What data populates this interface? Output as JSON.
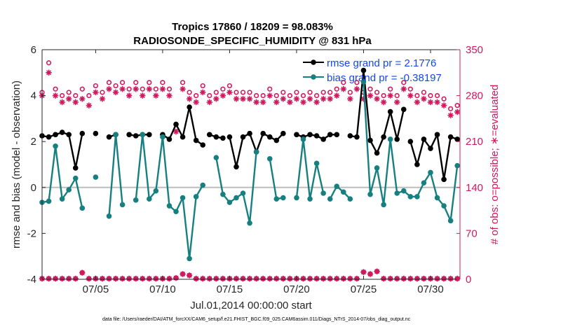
{
  "chart_data": {
    "type": "line",
    "title_line1": "Tropics 17860 / 18209 = 98.083%",
    "title_line2": "RADIOSONDE_SPECIFIC_HUMIDITY @ 831 hPa",
    "xlabel": "Jul.01,2014 00:00:00 start",
    "ylabel_left": "rmse and bias (model - observation)",
    "ylabel_right": "# of obs: o=possible; ∗=evaluated",
    "footer": "data file: /Users/raeder/DAI/ATM_forcXX/CAM6_setup/f.e21.FHIST_BGC.f09_025.CAM6assim.011/Diags_NTrS_2014-07/obs_diag_output.nc",
    "xlim": [
      1,
      32.2
    ],
    "ylim_left": [
      -4,
      6
    ],
    "ylim_right": [
      0,
      350
    ],
    "x_ticks": [
      5,
      10,
      15,
      20,
      25,
      30
    ],
    "x_tick_labels": [
      "07/05",
      "07/10",
      "07/15",
      "07/20",
      "07/25",
      "07/30"
    ],
    "y_left_ticks": [
      -4,
      -2,
      0,
      2,
      4,
      6
    ],
    "y_left_tick_labels": [
      "-4",
      "-2",
      "0",
      "2",
      "4",
      "6"
    ],
    "y_right_ticks": [
      0,
      70,
      140,
      210,
      280,
      350
    ],
    "y_right_tick_labels": [
      "0",
      "70",
      "140",
      "210",
      "280",
      "350"
    ],
    "legend": {
      "position": "top-right",
      "entries": [
        "rmse grand pr = 2.1776",
        "bias grand pr = -0.38197"
      ]
    },
    "colors": {
      "rmse": "#000000",
      "bias": "#168080",
      "obs": "#d1185e",
      "zero_line": "#bdbdbd",
      "title": "#000000"
    },
    "series": [
      {
        "name": "rmse",
        "segments": [
          {
            "x": [
              1.0,
              1.5,
              2.0,
              2.5,
              3.0,
              3.5,
              4.0
            ],
            "y": [
              2.25,
              2.2,
              2.3,
              2.4,
              2.3,
              0.85,
              2.35
            ]
          },
          {
            "x": [
              5.0
            ],
            "y": [
              2.35
            ]
          },
          {
            "x": [
              6.0,
              6.5
            ],
            "y": [
              2.2,
              2.3
            ]
          },
          {
            "x": [
              7.5,
              8.0,
              8.5,
              9.0
            ],
            "y": [
              2.3,
              2.25,
              2.3,
              2.3
            ]
          },
          {
            "x": [
              10.0,
              10.5,
              11.0,
              11.5,
              12.0,
              12.5,
              13.0
            ],
            "y": [
              2.3,
              2.1,
              2.75,
              2.2,
              3.5,
              2.05,
              1.85
            ]
          },
          {
            "x": [
              13.5,
              14.0,
              14.5
            ],
            "y": [
              2.3,
              2.2,
              2.15
            ]
          },
          {
            "x": [
              15.0,
              15.5,
              16.0,
              16.5,
              17.0,
              17.5,
              18.0,
              18.5,
              19.0
            ],
            "y": [
              2.2,
              0.9,
              2.2,
              2.35,
              1.55,
              2.35,
              2.2,
              2.05,
              2.35
            ]
          },
          {
            "x": [
              20.0,
              20.5,
              21.0,
              21.5,
              22.0,
              22.5,
              23.0
            ],
            "y": [
              2.3,
              2.2,
              2.3,
              2.25,
              2.1,
              2.3,
              2.3
            ]
          },
          {
            "x": [
              24.0,
              24.5,
              25.0,
              25.5,
              26.0,
              26.5,
              27.0,
              27.5,
              28.0
            ],
            "y": [
              2.25,
              2.2,
              5.1,
              2.05,
              1.5,
              2.2,
              3.3,
              2.1,
              3.4
            ]
          },
          {
            "x": [
              28.5,
              29.0,
              29.5,
              30.0,
              30.5,
              31.0,
              31.5,
              32.0
            ],
            "y": [
              2.0,
              1.0,
              2.1,
              1.7,
              2.3,
              0.35,
              2.2,
              2.1
            ]
          }
        ]
      },
      {
        "name": "bias",
        "segments": [
          {
            "x": [
              1.0,
              1.5,
              2.0,
              2.5,
              3.0,
              3.5,
              4.0
            ],
            "y": [
              -0.65,
              -0.6,
              1.8,
              -0.5,
              -0.1,
              0.4,
              -0.9
            ]
          },
          {
            "x": [
              5.0
            ],
            "y": [
              0.45
            ]
          },
          {
            "x": [
              6.0,
              6.5,
              7.0
            ],
            "y": [
              -1.25,
              2.3,
              -0.75
            ]
          },
          {
            "x": [
              8.0,
              8.5,
              9.0,
              9.5,
              10.0,
              10.5,
              11.0,
              11.5,
              12.0,
              12.5,
              13.0
            ],
            "y": [
              -0.55,
              2.3,
              -0.5,
              -0.15,
              2.2,
              -0.8,
              -1.05,
              -0.45,
              -3.1,
              -0.4,
              0.1
            ]
          },
          {
            "x": [
              14.0,
              14.5,
              15.0,
              15.5,
              16.0,
              16.5,
              17.0
            ],
            "y": [
              1.3,
              -0.3,
              -0.65,
              -0.45,
              -0.25,
              -1.55,
              1.55
            ]
          },
          {
            "x": [
              18.0,
              18.5,
              19.0
            ],
            "y": [
              1.25,
              -0.5,
              -0.45
            ]
          },
          {
            "x": [
              20.0,
              20.5,
              21.0,
              21.5,
              22.0
            ],
            "y": [
              -0.45,
              2.1,
              -0.5,
              1.05,
              -0.25
            ]
          },
          {
            "x": [
              22.5,
              23.0,
              23.5,
              24.0
            ],
            "y": [
              -0.5,
              0.05,
              -0.2,
              -0.5
            ]
          },
          {
            "x": [
              25.0,
              25.5,
              26.0,
              26.5,
              27.0,
              27.5,
              28.0,
              28.5,
              29.0,
              29.5,
              30.0,
              30.5,
              31.0,
              31.5,
              32.0
            ],
            "y": [
              4.6,
              -0.3,
              0.85,
              -0.75,
              2.1,
              -0.25,
              -0.15,
              -0.4,
              -0.4,
              0.2,
              0.65,
              -0.45,
              -0.8,
              -1.45,
              0.95
            ]
          }
        ]
      },
      {
        "name": "obs_possible",
        "x": [
          1.0,
          1.5,
          2.0,
          2.5,
          3.0,
          3.5,
          4.0,
          4.5,
          5.0,
          5.5,
          6.0,
          6.5,
          7.0,
          7.5,
          8.0,
          8.5,
          9.0,
          9.5,
          10.0,
          10.5,
          11.0,
          11.5,
          12.0,
          12.5,
          13.0,
          13.5,
          14.0,
          14.5,
          15.0,
          15.5,
          16.0,
          16.5,
          17.0,
          17.5,
          18.0,
          18.5,
          19.0,
          19.5,
          20.0,
          20.5,
          21.0,
          21.5,
          22.0,
          22.5,
          23.0,
          23.5,
          24.0,
          24.5,
          25.0,
          25.5,
          26.0,
          26.5,
          27.0,
          27.5,
          28.0,
          28.5,
          29.0,
          29.5,
          30.0,
          30.5,
          31.0,
          31.5,
          32.0
        ],
        "y": [
          285,
          330,
          290,
          280,
          285,
          280,
          290,
          280,
          295,
          285,
          300,
          295,
          300,
          290,
          300,
          290,
          300,
          290,
          300,
          290,
          230,
          300,
          285,
          280,
          295,
          280,
          285,
          290,
          295,
          285,
          285,
          285,
          280,
          280,
          290,
          280,
          285,
          280,
          285,
          280,
          285,
          280,
          285,
          285,
          290,
          300,
          285,
          300,
          285,
          290,
          285,
          280,
          290,
          280,
          300,
          290,
          280,
          285,
          280,
          280,
          275,
          260,
          265
        ]
      },
      {
        "name": "obs_evaluated",
        "x": [
          1.0,
          1.5,
          2.0,
          2.5,
          3.0,
          3.5,
          4.0,
          4.5,
          5.0,
          5.5,
          6.0,
          6.5,
          7.0,
          7.5,
          8.0,
          8.5,
          9.0,
          9.5,
          10.0,
          10.5,
          11.0,
          11.5,
          12.0,
          12.5,
          13.0,
          13.5,
          14.0,
          14.5,
          15.0,
          15.5,
          16.0,
          16.5,
          17.0,
          17.5,
          18.0,
          18.5,
          19.0,
          19.5,
          20.0,
          20.5,
          21.0,
          21.5,
          22.0,
          22.5,
          23.0,
          23.5,
          24.0,
          24.5,
          25.0,
          25.5,
          26.0,
          26.5,
          27.0,
          27.5,
          28.0,
          28.5,
          29.0,
          29.5,
          30.0,
          30.5,
          31.0,
          31.5,
          32.0
        ],
        "y": [
          280,
          315,
          280,
          270,
          275,
          270,
          275,
          265,
          285,
          275,
          290,
          285,
          290,
          280,
          290,
          280,
          290,
          280,
          290,
          280,
          225,
          290,
          275,
          270,
          285,
          270,
          275,
          280,
          285,
          275,
          275,
          275,
          270,
          270,
          280,
          270,
          275,
          270,
          275,
          270,
          275,
          270,
          275,
          275,
          280,
          290,
          275,
          290,
          275,
          280,
          275,
          270,
          280,
          270,
          290,
          280,
          270,
          275,
          270,
          270,
          265,
          250,
          255
        ]
      },
      {
        "name": "obs_bottom",
        "x": [
          1.0,
          1.5,
          2.0,
          2.5,
          3.0,
          3.5,
          4.0,
          4.5,
          5.0,
          5.5,
          6.0,
          6.5,
          7.0,
          7.5,
          8.0,
          8.5,
          9.0,
          9.5,
          10.0,
          10.5,
          11.0,
          11.5,
          12.0,
          12.5,
          13.0,
          13.5,
          14.0,
          14.5,
          15.0,
          15.5,
          16.0,
          16.5,
          17.0,
          17.5,
          18.0,
          18.5,
          19.0,
          19.5,
          20.0,
          20.5,
          21.0,
          21.5,
          22.0,
          22.5,
          23.0,
          23.5,
          24.0,
          24.5,
          25.0,
          25.5,
          26.0,
          26.5,
          27.0,
          27.5,
          28.0,
          28.5,
          29.0,
          29.5,
          30.0,
          30.5,
          31.0,
          31.5,
          32.0
        ],
        "y": [
          1,
          1,
          1,
          1,
          1,
          1,
          10,
          1,
          1,
          1,
          1,
          1,
          1,
          1,
          1,
          1,
          1,
          1,
          1,
          1,
          2,
          8,
          6,
          1,
          1,
          1,
          1,
          1,
          1,
          1,
          1,
          1,
          1,
          1,
          1,
          1,
          1,
          1,
          1,
          1,
          1,
          1,
          1,
          1,
          1,
          1,
          1,
          1,
          11,
          8,
          12,
          1,
          1,
          1,
          1,
          1,
          1,
          1,
          1,
          1,
          1,
          1,
          1
        ]
      }
    ]
  }
}
